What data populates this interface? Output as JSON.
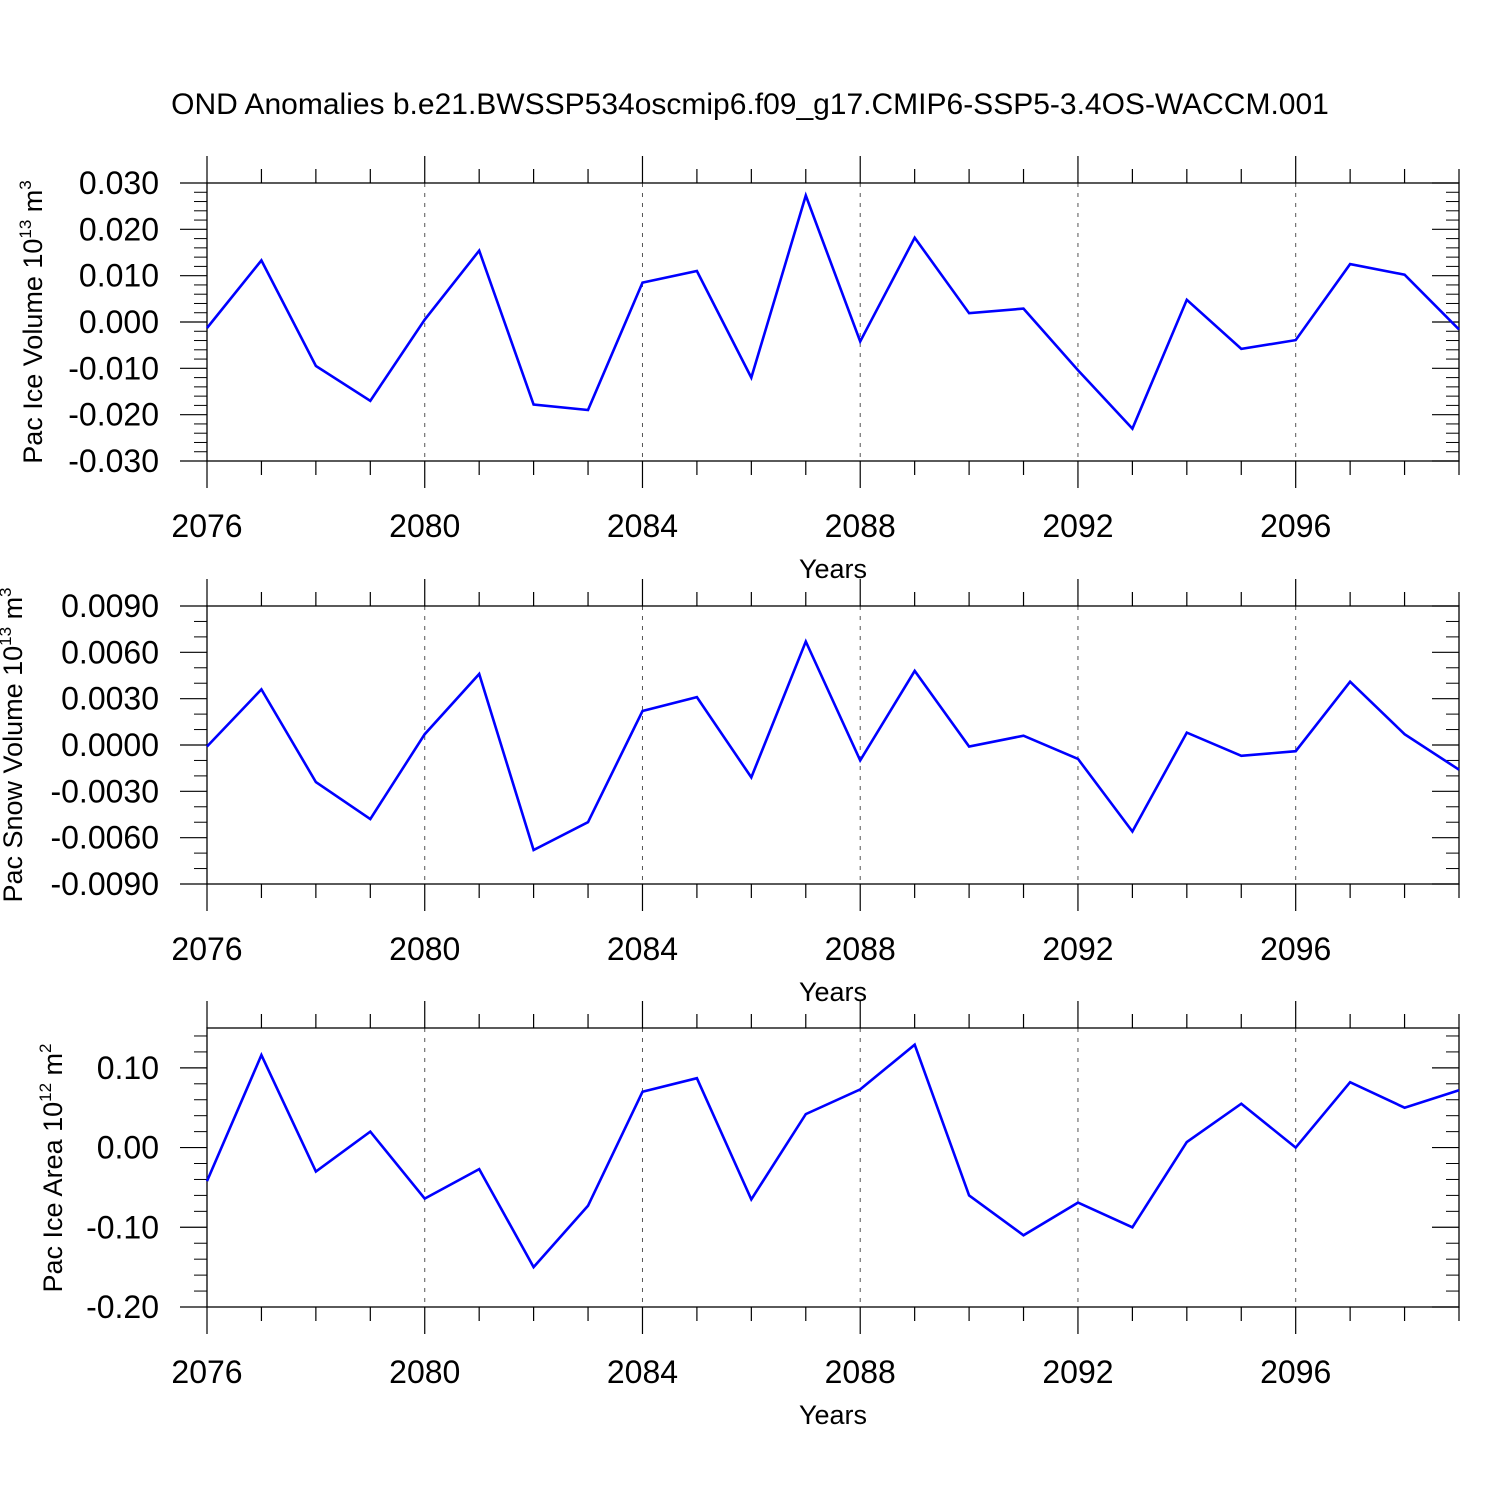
{
  "figure": {
    "title": "OND Anomalies b.e21.BWSSP534oscmip6.f09_g17.CMIP6-SSP5-3.4OS-WACCM.001"
  },
  "colors": {
    "series": "#0000ff",
    "axis": "#000000",
    "grid": "#555555"
  },
  "chart_data": [
    {
      "type": "line",
      "xlabel": "Years",
      "ylabel": {
        "text": "Pac Ice Volume 10",
        "exponent": "13",
        "unit": " m",
        "unit_exponent": "3"
      },
      "x": [
        2076,
        2077,
        2078,
        2079,
        2080,
        2081,
        2082,
        2083,
        2084,
        2085,
        2086,
        2087,
        2088,
        2089,
        2090,
        2091,
        2092,
        2093,
        2094,
        2095,
        2096,
        2097,
        2098,
        2099
      ],
      "xlim": [
        2076,
        2099
      ],
      "ylim": [
        -0.03,
        0.03
      ],
      "x_major_ticks": [
        2076,
        2080,
        2084,
        2088,
        2092,
        2096
      ],
      "x_tick_labels": [
        "2076",
        "2080",
        "2084",
        "2088",
        "2092",
        "2096"
      ],
      "y_ticks": [
        0.03,
        0.02,
        0.01,
        0.0,
        -0.01,
        -0.02,
        -0.03
      ],
      "y_tick_labels": [
        "0.030",
        "0.020",
        "0.010",
        "0.000",
        "-0.010",
        "-0.020",
        "-0.030"
      ],
      "y_minor_step": 0.002,
      "grid": "vertical dashed at major x ticks",
      "series": [
        {
          "values": [
            -0.0013,
            0.0133,
            -0.0095,
            -0.017,
            0.0005,
            0.0154,
            -0.0178,
            -0.019,
            0.0085,
            0.011,
            -0.012,
            0.0273,
            -0.0042,
            0.0182,
            0.0019,
            0.0029,
            -0.0104,
            -0.023,
            0.0048,
            -0.0058,
            -0.0039,
            0.0125,
            0.0102,
            -0.0016
          ]
        }
      ]
    },
    {
      "type": "line",
      "xlabel": "Years",
      "ylabel": {
        "text": "Pac Snow Volume 10",
        "exponent": "13",
        "unit": " m",
        "unit_exponent": "3"
      },
      "x": [
        2076,
        2077,
        2078,
        2079,
        2080,
        2081,
        2082,
        2083,
        2084,
        2085,
        2086,
        2087,
        2088,
        2089,
        2090,
        2091,
        2092,
        2093,
        2094,
        2095,
        2096,
        2097,
        2098,
        2099
      ],
      "xlim": [
        2076,
        2099
      ],
      "ylim": [
        -0.009,
        0.009
      ],
      "x_major_ticks": [
        2076,
        2080,
        2084,
        2088,
        2092,
        2096
      ],
      "x_tick_labels": [
        "2076",
        "2080",
        "2084",
        "2088",
        "2092",
        "2096"
      ],
      "y_ticks": [
        0.009,
        0.006,
        0.003,
        0.0,
        -0.003,
        -0.006,
        -0.009
      ],
      "y_tick_labels": [
        "0.0090",
        "0.0060",
        "0.0030",
        "0.0000",
        "-0.0030",
        "-0.0060",
        "-0.0090"
      ],
      "y_minor_step": 0.001,
      "grid": "vertical dashed at major x ticks",
      "series": [
        {
          "values": [
            -0.0001,
            0.0036,
            -0.0024,
            -0.0048,
            0.0007,
            0.0046,
            -0.0068,
            -0.005,
            0.0022,
            0.0031,
            -0.0021,
            0.0067,
            -0.001,
            0.0048,
            -0.0001,
            0.0006,
            -0.0009,
            -0.0056,
            0.0008,
            -0.0007,
            -0.0004,
            0.0041,
            0.0007,
            -0.0016
          ]
        }
      ]
    },
    {
      "type": "line",
      "xlabel": "Years",
      "ylabel": {
        "text": "Pac Ice Area 10",
        "exponent": "12",
        "unit": " m",
        "unit_exponent": "2"
      },
      "x": [
        2076,
        2077,
        2078,
        2079,
        2080,
        2081,
        2082,
        2083,
        2084,
        2085,
        2086,
        2087,
        2088,
        2089,
        2090,
        2091,
        2092,
        2093,
        2094,
        2095,
        2096,
        2097,
        2098,
        2099
      ],
      "xlim": [
        2076,
        2099
      ],
      "ylim": [
        -0.2,
        0.15
      ],
      "x_major_ticks": [
        2076,
        2080,
        2084,
        2088,
        2092,
        2096
      ],
      "x_tick_labels": [
        "2076",
        "2080",
        "2084",
        "2088",
        "2092",
        "2096"
      ],
      "y_ticks": [
        0.1,
        0.0,
        -0.1,
        -0.2
      ],
      "y_tick_labels": [
        "0.10",
        "0.00",
        "-0.10",
        "-0.20"
      ],
      "y_minor_step": 0.02,
      "grid": "vertical dashed at major x ticks",
      "series": [
        {
          "values": [
            -0.042,
            0.116,
            -0.03,
            0.02,
            -0.064,
            -0.027,
            -0.15,
            -0.073,
            0.07,
            0.087,
            -0.065,
            0.042,
            0.073,
            0.129,
            -0.06,
            -0.11,
            -0.069,
            -0.1,
            0.007,
            0.055,
            0.0,
            0.082,
            0.05,
            0.072
          ]
        }
      ]
    }
  ]
}
